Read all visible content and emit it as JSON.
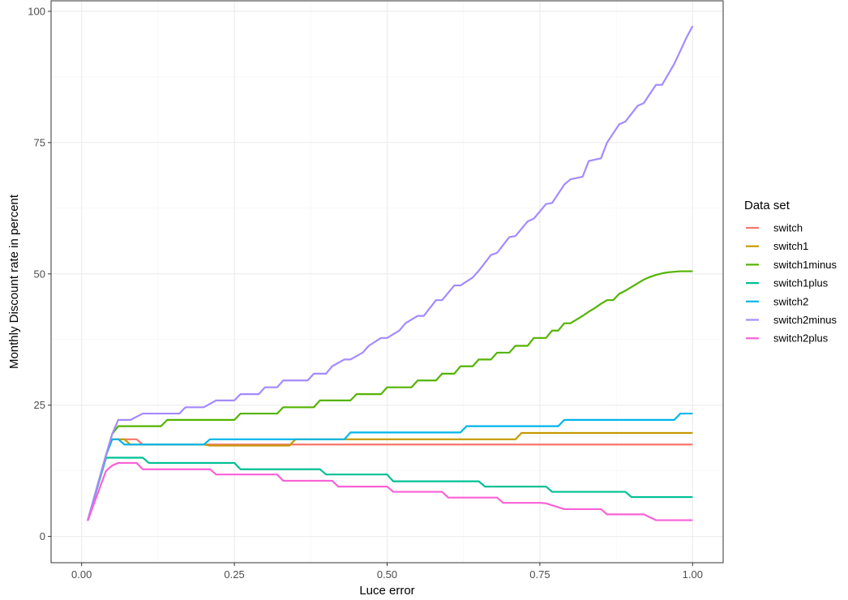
{
  "chart_data": {
    "type": "line",
    "title": "",
    "xlabel": "Luce error",
    "ylabel": "Monthly Discount rate in percent",
    "xlim": [
      0,
      1
    ],
    "ylim": [
      0,
      100
    ],
    "xticks": [
      0,
      0.25,
      0.5,
      0.75,
      1
    ],
    "xtick_labels": [
      "0.00",
      "0.25",
      "0.50",
      "0.75",
      "1.00"
    ],
    "yticks": [
      0,
      25,
      50,
      75,
      100
    ],
    "ytick_labels": [
      "0",
      "25",
      "50",
      "75",
      "100"
    ],
    "grid": true,
    "legend_title": "Data set",
    "legend_position": "right",
    "series": [
      {
        "name": "switch",
        "color": "#F8766D",
        "x": [
          0.01,
          0.04,
          0.05,
          0.09,
          0.1,
          1.0
        ],
        "y": [
          3,
          15.5,
          18.5,
          18.5,
          17.5,
          17.5
        ]
      },
      {
        "name": "switch1",
        "color": "#C49A00",
        "x": [
          0.01,
          0.04,
          0.05,
          0.07,
          0.08,
          0.2,
          0.21,
          0.34,
          0.35,
          0.71,
          0.72,
          1.0
        ],
        "y": [
          3,
          15.5,
          18.5,
          18.5,
          17.5,
          17.5,
          17.3,
          17.3,
          18.5,
          18.5,
          19.7,
          19.7
        ]
      },
      {
        "name": "switch1minus",
        "color": "#53B400",
        "x": [
          0.01,
          0.04,
          0.05,
          0.06,
          0.13,
          0.14,
          0.25,
          0.26,
          0.32,
          0.33,
          0.38,
          0.39,
          0.44,
          0.45,
          0.49,
          0.5,
          0.54,
          0.55,
          0.58,
          0.59,
          0.61,
          0.62,
          0.64,
          0.65,
          0.67,
          0.68,
          0.7,
          0.71,
          0.73,
          0.74,
          0.76,
          0.77,
          0.78,
          0.79,
          0.8,
          0.81,
          0.82,
          0.83,
          0.84,
          0.85,
          0.86,
          0.87,
          0.88,
          0.89,
          0.9,
          0.91,
          0.92,
          0.93,
          0.94,
          0.95,
          0.96,
          0.97,
          0.98,
          0.99,
          1.0
        ],
        "y": [
          3,
          15.5,
          19.5,
          21,
          21,
          22.2,
          22.2,
          23.4,
          23.4,
          24.6,
          24.6,
          25.9,
          25.9,
          27.1,
          27.1,
          28.4,
          28.4,
          29.7,
          29.7,
          31,
          31,
          32.4,
          32.4,
          33.7,
          33.7,
          35,
          35,
          36.3,
          36.3,
          37.8,
          37.8,
          39.2,
          39.2,
          40.6,
          40.6,
          41.3,
          42,
          42.8,
          43.5,
          44.3,
          45,
          45,
          46.2,
          46.8,
          47.5,
          48.2,
          48.9,
          49.4,
          49.8,
          50.1,
          50.3,
          50.4,
          50.5,
          50.5,
          50.5
        ]
      },
      {
        "name": "switch1plus",
        "color": "#00C094",
        "x": [
          0.01,
          0.04,
          0.05,
          0.1,
          0.11,
          0.25,
          0.26,
          0.39,
          0.4,
          0.5,
          0.51,
          0.62,
          0.63,
          0.65,
          0.66,
          0.76,
          0.77,
          0.89,
          0.9,
          1.0
        ],
        "y": [
          3,
          15,
          15,
          15,
          14,
          14,
          12.8,
          12.8,
          11.8,
          11.8,
          10.5,
          10.5,
          10.5,
          10.5,
          9.5,
          9.5,
          8.5,
          8.5,
          7.5,
          7.5
        ]
      },
      {
        "name": "switch2",
        "color": "#00B6EB",
        "x": [
          0.01,
          0.04,
          0.05,
          0.06,
          0.07,
          0.2,
          0.21,
          0.43,
          0.44,
          0.62,
          0.63,
          0.78,
          0.79,
          0.97,
          0.98,
          1.0
        ],
        "y": [
          3,
          15.5,
          18.5,
          18.5,
          17.5,
          17.5,
          18.5,
          18.5,
          19.8,
          19.8,
          21,
          21,
          22.2,
          22.2,
          23.4,
          23.4
        ]
      },
      {
        "name": "switch2minus",
        "color": "#A58AFF",
        "x": [
          0.01,
          0.04,
          0.05,
          0.06,
          0.08,
          0.1,
          0.16,
          0.17,
          0.2,
          0.22,
          0.25,
          0.26,
          0.29,
          0.3,
          0.32,
          0.33,
          0.37,
          0.38,
          0.4,
          0.41,
          0.43,
          0.44,
          0.46,
          0.47,
          0.49,
          0.5,
          0.52,
          0.53,
          0.55,
          0.56,
          0.58,
          0.59,
          0.61,
          0.62,
          0.64,
          0.65,
          0.67,
          0.68,
          0.7,
          0.71,
          0.73,
          0.74,
          0.76,
          0.77,
          0.79,
          0.8,
          0.82,
          0.83,
          0.85,
          0.86,
          0.88,
          0.89,
          0.91,
          0.92,
          0.94,
          0.95,
          0.96,
          0.97,
          0.98,
          0.99,
          1.0
        ],
        "y": [
          3,
          15.5,
          19.5,
          22.2,
          22.2,
          23.4,
          23.4,
          24.6,
          24.6,
          25.9,
          25.9,
          27.1,
          27.1,
          28.4,
          28.4,
          29.7,
          29.7,
          31,
          31,
          32.4,
          33.7,
          33.7,
          35,
          36.3,
          37.8,
          37.8,
          39.2,
          40.6,
          42,
          42,
          45,
          45,
          47.8,
          47.8,
          49.3,
          50.6,
          53.6,
          54,
          57,
          57.2,
          60,
          60.5,
          63.3,
          63.5,
          67,
          68,
          68.5,
          71.5,
          72,
          75,
          78.5,
          79,
          82,
          82.5,
          86,
          86,
          88,
          90,
          92.5,
          95,
          97.2
        ]
      },
      {
        "name": "switch2plus",
        "color": "#FB61D7",
        "x": [
          0.01,
          0.04,
          0.05,
          0.06,
          0.09,
          0.1,
          0.21,
          0.22,
          0.32,
          0.33,
          0.41,
          0.42,
          0.5,
          0.51,
          0.59,
          0.6,
          0.68,
          0.69,
          0.75,
          0.76,
          0.79,
          0.8,
          0.85,
          0.86,
          0.91,
          0.92,
          0.94,
          0.95,
          1.0
        ],
        "y": [
          3,
          12.5,
          13.5,
          14,
          14,
          12.8,
          12.8,
          11.8,
          11.8,
          10.6,
          10.6,
          9.5,
          9.5,
          8.5,
          8.5,
          7.4,
          7.4,
          6.4,
          6.4,
          6.3,
          5.2,
          5.2,
          5.2,
          4.2,
          4.2,
          4.2,
          3.1,
          3.1,
          3.1
        ]
      }
    ]
  }
}
